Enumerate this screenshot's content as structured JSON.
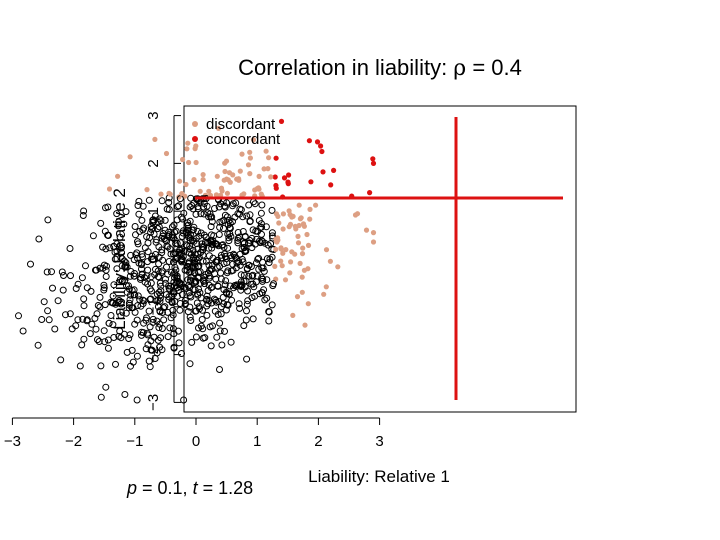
{
  "chart_data": {
    "type": "scatter",
    "title_text": "Correlation in liability: ",
    "title_symbol": "ρ",
    "title_value": " = 0.4",
    "xlabel": "Liability: Relative 1",
    "ylabel": "Liability: Relative 2",
    "xlim": [
      -3,
      3
    ],
    "ylim": [
      -3,
      3
    ],
    "xticks": [
      "−3",
      "−2",
      "−1",
      "0",
      "1",
      "2",
      "3"
    ],
    "yticks": [
      "−3",
      "−2",
      "−1",
      "0",
      "1",
      "2",
      "3"
    ],
    "grid": false,
    "legend_position": "top-left",
    "threshold": 1.28,
    "correlation": 0.4,
    "point_count": 1000,
    "series": [
      {
        "name": "discordant",
        "color": "#dd9f83",
        "marker": "filled-circle"
      },
      {
        "name": "concordant",
        "color": "#dd1111",
        "marker": "filled-circle"
      },
      {
        "name": "",
        "color": "#000000",
        "marker": "open-circle"
      }
    ],
    "threshold_color": "#dd1111",
    "caption": {
      "p_symbol": "p",
      "p_value": " = 0.1, ",
      "t_symbol": "t",
      "t_value": " = 1.28"
    }
  }
}
